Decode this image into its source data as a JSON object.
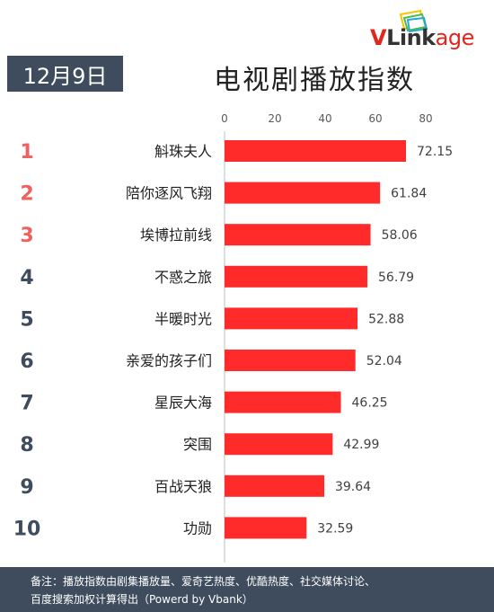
{
  "logo": {
    "v": "V",
    "link": "Link",
    "age": "age"
  },
  "header": {
    "date": "12月9日",
    "title": "电视剧播放指数"
  },
  "chart_data": {
    "type": "bar",
    "orientation": "horizontal",
    "ranks": [
      "1",
      "2",
      "3",
      "4",
      "5",
      "6",
      "7",
      "8",
      "9",
      "10"
    ],
    "categories": [
      "斛珠夫人",
      "陪你逐风飞翔",
      "埃博拉前线",
      "不惑之旅",
      "半暖时光",
      "亲爱的孩子们",
      "星辰大海",
      "突围",
      "百战天狼",
      "功勋"
    ],
    "values": [
      72.15,
      61.84,
      58.06,
      56.79,
      52.88,
      52.04,
      46.25,
      42.99,
      39.64,
      32.59
    ],
    "value_labels": [
      "72.15",
      "61.84",
      "58.06",
      "56.79",
      "52.88",
      "52.04",
      "46.25",
      "42.99",
      "39.64",
      "32.59"
    ],
    "xticks": [
      0,
      20,
      40,
      60,
      80
    ],
    "xlim": [
      0,
      80
    ],
    "axis_position": "top",
    "grid": false,
    "bar_color": "#ff2a2a",
    "top_rank_color": "#f0605e",
    "rank_color": "#3e4c5e"
  },
  "footer": {
    "line1": "备注：播放指数由剧集播放量、爱奇艺热度、优酷热度、社交媒体讨论、",
    "line2": "百度搜索加权计算得出（Powerd by Vbank）"
  }
}
